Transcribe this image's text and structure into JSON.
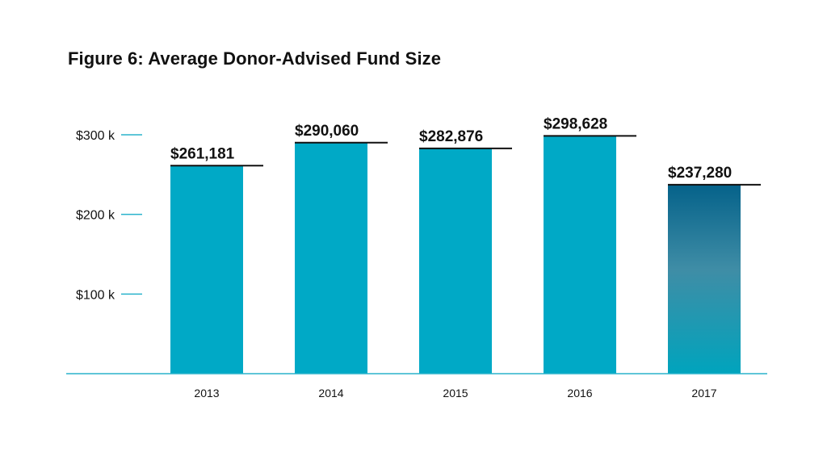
{
  "chart_data": {
    "type": "bar",
    "title": "Figure 6: Average Donor-Advised Fund Size",
    "xlabel": "",
    "ylabel": "",
    "categories": [
      "2013",
      "2014",
      "2015",
      "2016",
      "2017"
    ],
    "values": [
      261181,
      290060,
      282876,
      298628,
      237280
    ],
    "value_labels": [
      "$261,181",
      "$290,060",
      "$282,876",
      "$298,628",
      "$237,280"
    ],
    "ylim": [
      0,
      300000
    ],
    "yticks": [
      100000,
      200000,
      300000
    ],
    "ytick_labels": [
      "$100 k",
      "$200 k",
      "$300 k"
    ],
    "grid": false,
    "legend": "none",
    "colors": {
      "bar": "#00a9c6",
      "highlight_top": "#05628a",
      "highlight_mid": "#3f8da6",
      "highlight_bottom": "#00a4bd",
      "axis": "#2ab3cc",
      "value_line": "#111111"
    },
    "highlight_index": 4
  }
}
